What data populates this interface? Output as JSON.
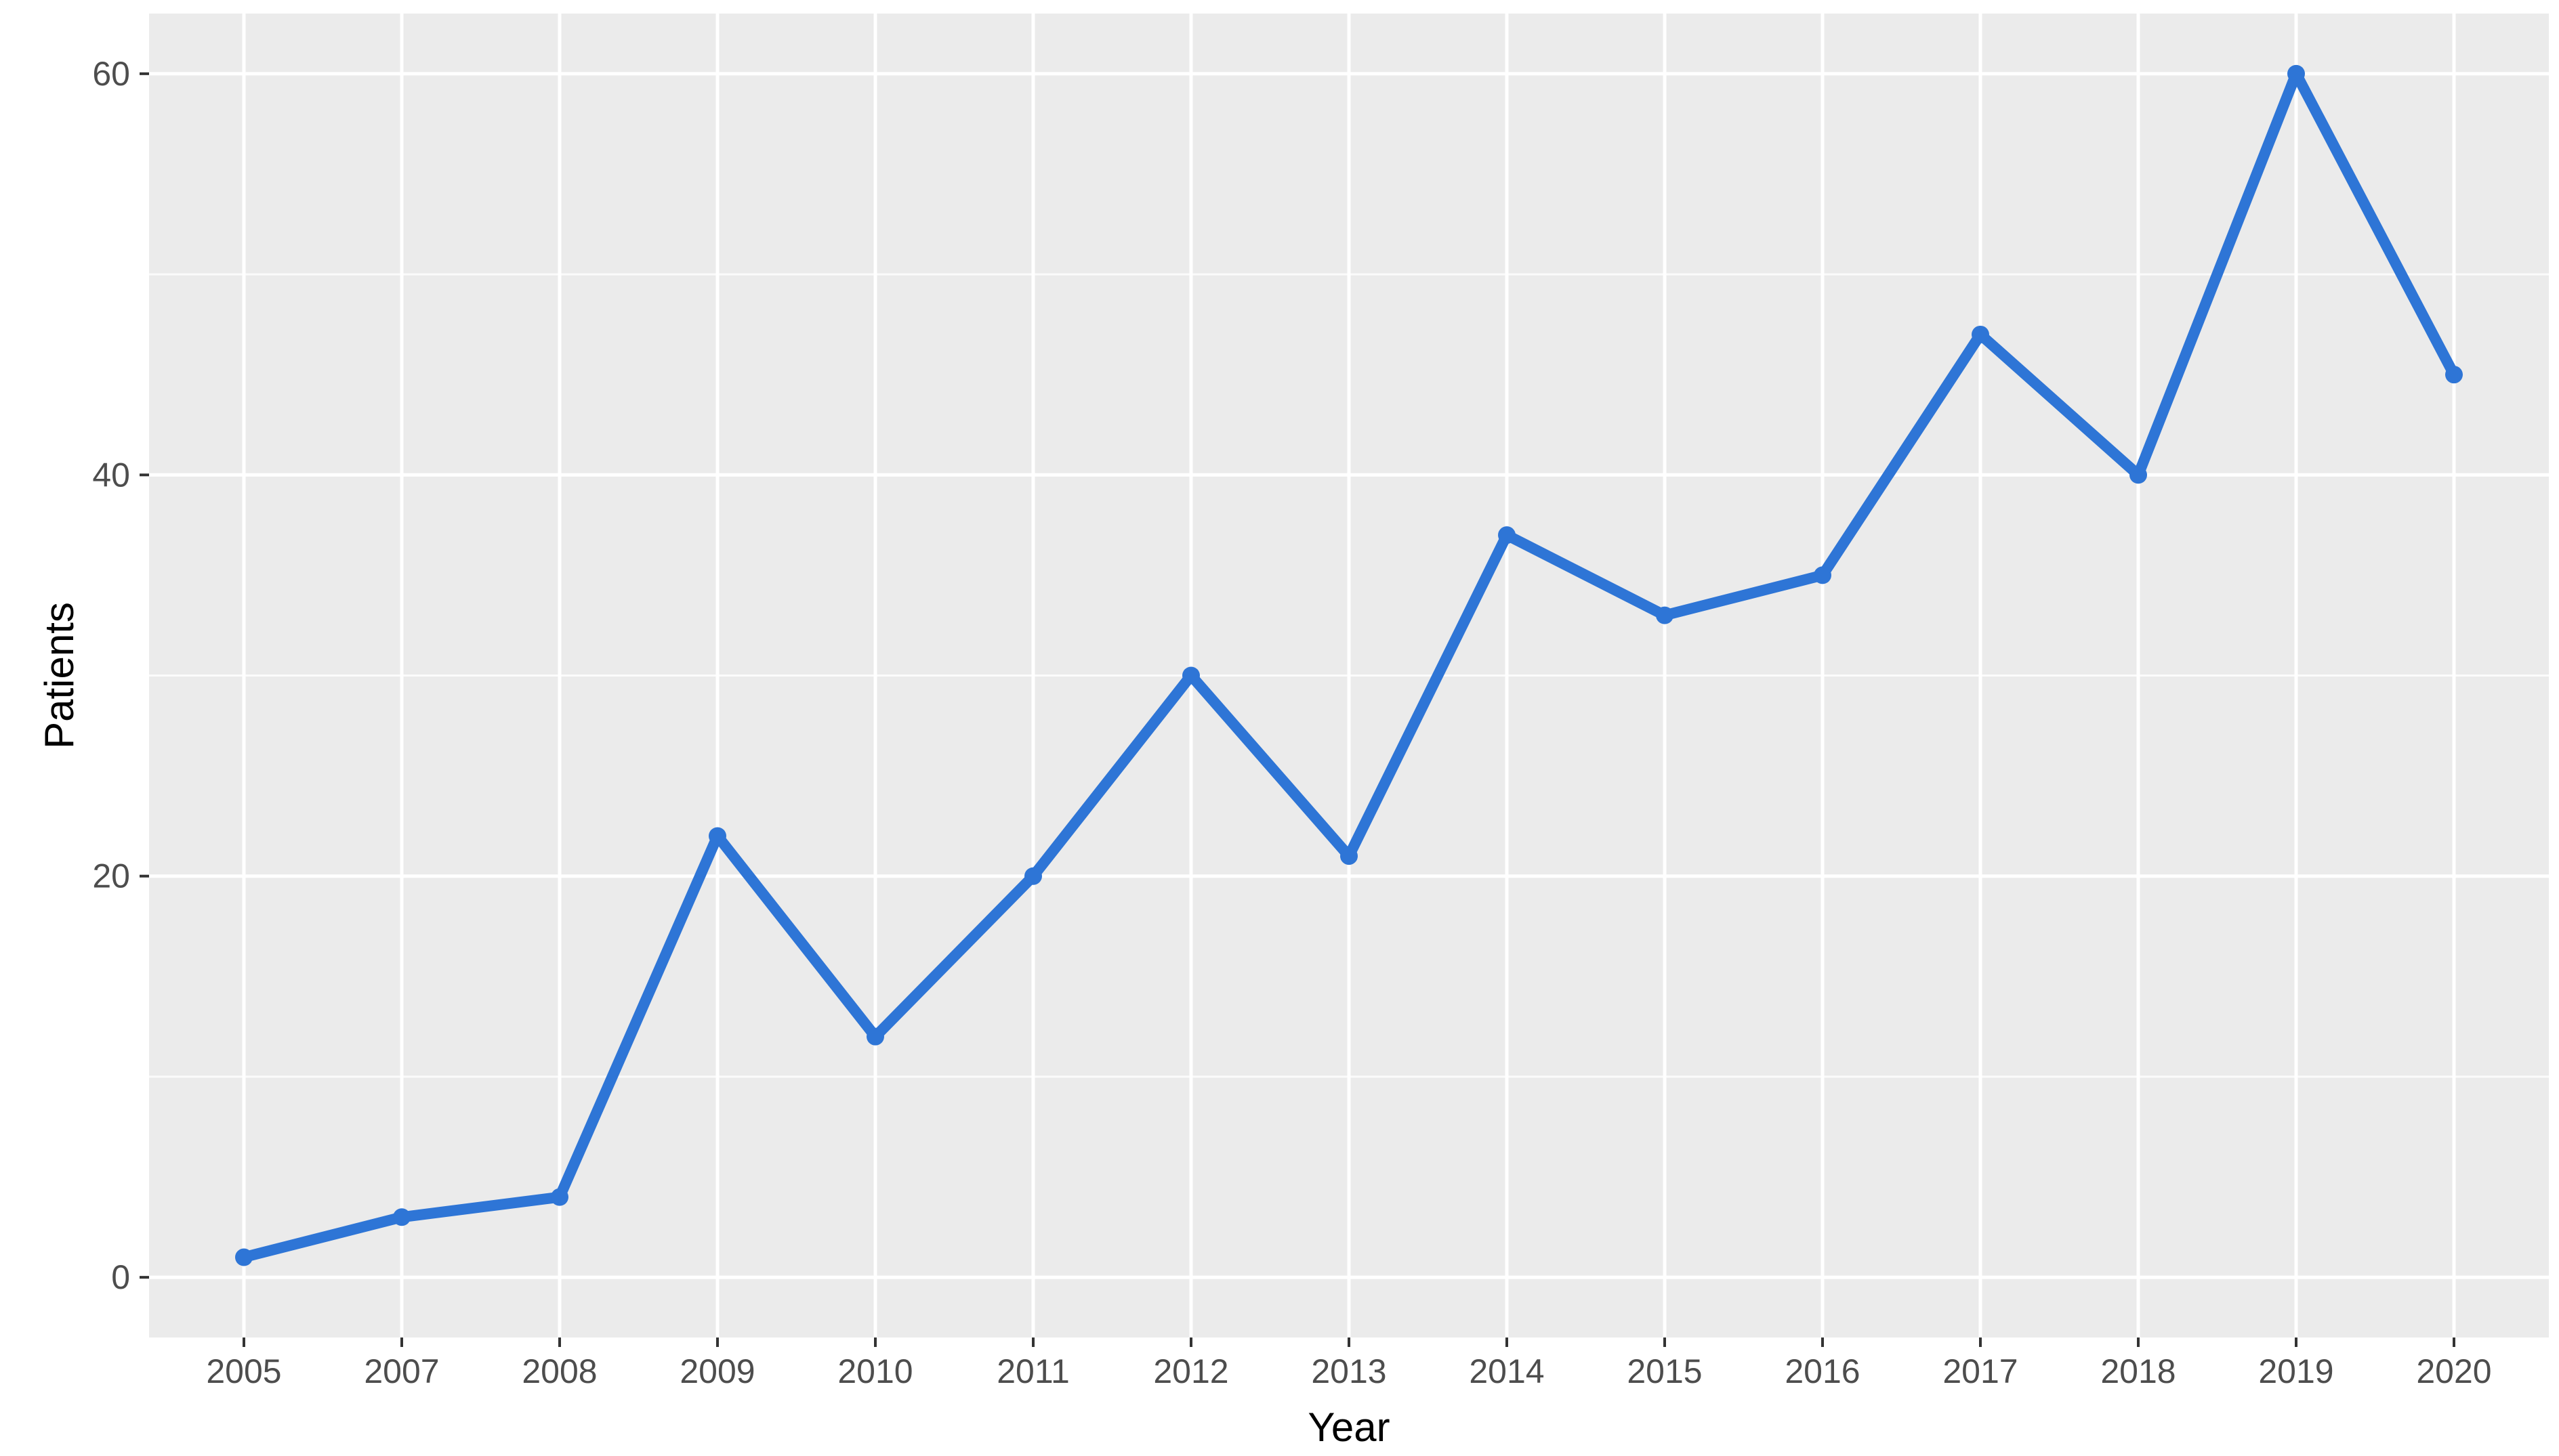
{
  "chart_data": {
    "type": "line",
    "title": "",
    "xlabel": "Year",
    "ylabel": "Patients",
    "categories": [
      "2005",
      "2007",
      "2008",
      "2009",
      "2010",
      "2011",
      "2012",
      "2013",
      "2014",
      "2015",
      "2016",
      "2017",
      "2018",
      "2019",
      "2020"
    ],
    "series": [
      {
        "values": [
          1,
          3,
          4,
          22,
          12,
          20,
          30,
          21,
          37,
          33,
          35,
          47,
          40,
          60,
          45
        ]
      }
    ],
    "y_ticks": [
      0,
      20,
      40,
      60
    ],
    "ylim": [
      -3,
      63
    ],
    "grid": true,
    "legend": "none",
    "colors": {
      "panel_background": "#ebebeb",
      "grid": "#ffffff",
      "line": "#2e75d6",
      "tick_text": "#4d4d4d",
      "axis_title": "#000000"
    }
  }
}
